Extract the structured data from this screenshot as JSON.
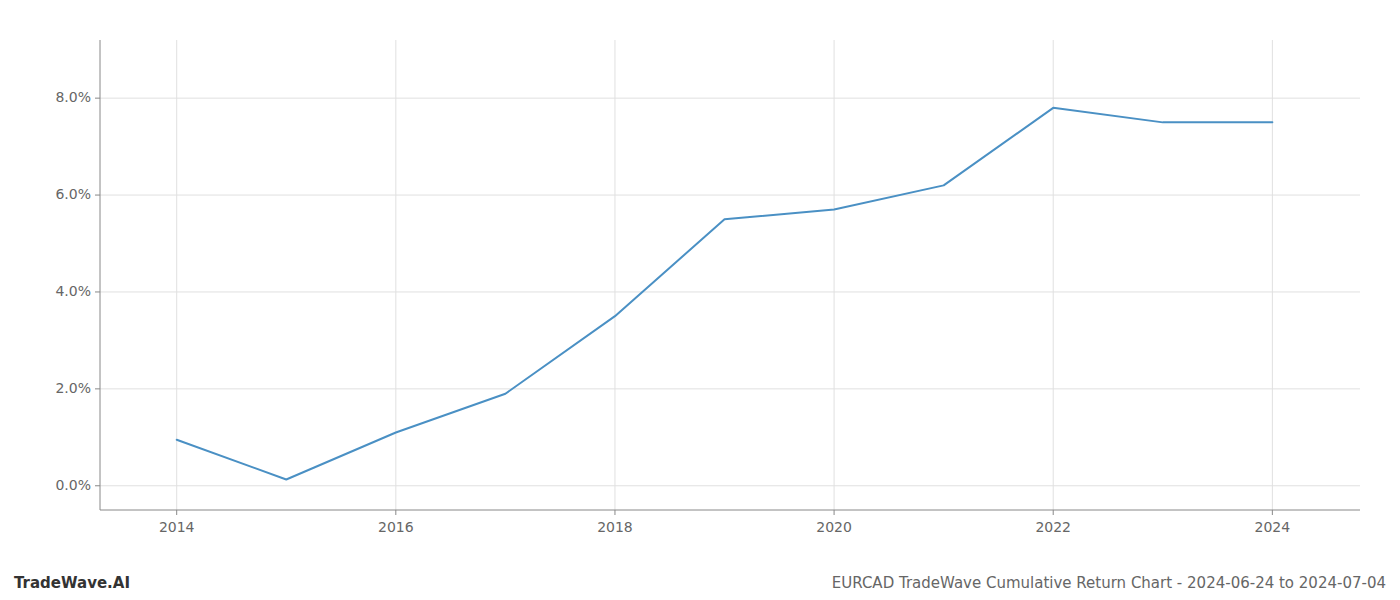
{
  "chart_data": {
    "type": "line",
    "title": "EURCAD TradeWave Cumulative Return Chart - 2024-06-24 to 2024-07-04",
    "annotations": [
      "TradeWave.AI"
    ],
    "x": [
      2014,
      2015,
      2016,
      2017,
      2018,
      2019,
      2020,
      2021,
      2022,
      2023,
      2024
    ],
    "values": [
      0.0095,
      0.0013,
      0.011,
      0.019,
      0.035,
      0.055,
      0.057,
      0.062,
      0.078,
      0.075,
      0.075
    ],
    "color": "#4a90c4",
    "xlim": [
      2013.3,
      2024.8
    ],
    "xticks": [
      2014,
      2016,
      2018,
      2020,
      2022,
      2024
    ],
    "ylim": [
      -0.005,
      0.092
    ],
    "yticks": [
      {
        "value": 0.0,
        "label": "0.0%"
      },
      {
        "value": 0.02,
        "label": "2.0%"
      },
      {
        "value": 0.04,
        "label": "4.0%"
      },
      {
        "value": 0.06,
        "label": "6.0%"
      },
      {
        "value": 0.08,
        "label": "8.0%"
      }
    ],
    "grid": true
  }
}
